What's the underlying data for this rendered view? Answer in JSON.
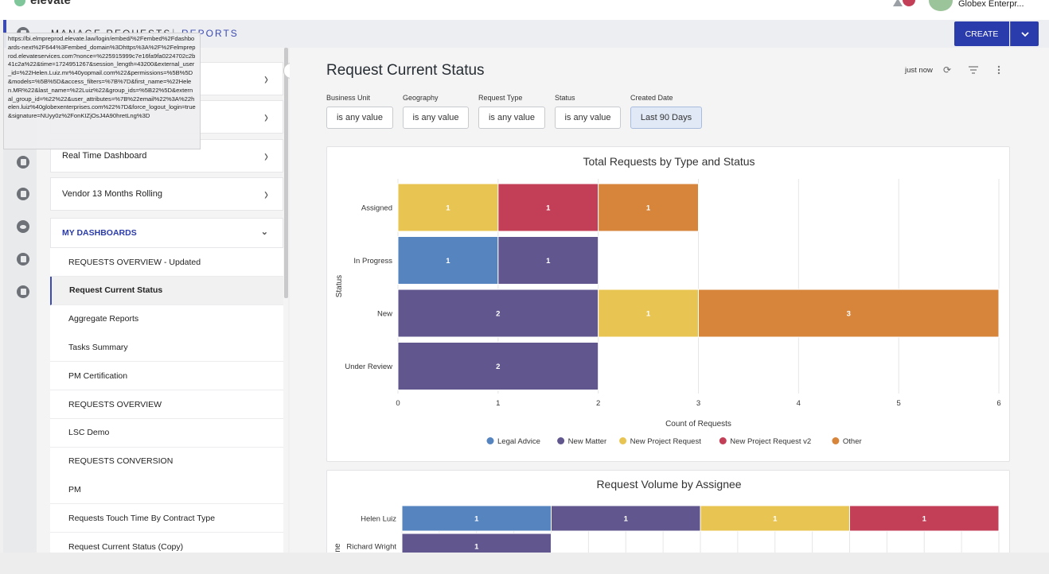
{
  "app": {
    "logo_text": "elevate",
    "user_name": "Globex Enterpr..."
  },
  "subnav": {
    "tabs": [
      {
        "label": "MANAGE REQUESTS"
      },
      {
        "label": "REPORTS"
      }
    ],
    "separator": "|"
  },
  "actions": {
    "create_label": "CREATE"
  },
  "tooltip_url": "https://bi.elmpreprod.elevate.law/login/embed/%2Fembed%2Fdashboards-next%2F644%3Fembed_domain%3Dhttps%3A%2F%2Felmpreprod.elevateservices.com?nonce=%225915999c7e16fa9fa0224702c2b41c2a%22&time=1724951267&session_length=43200&external_user_id=%22Helen.Luiz.mr%40yopmail.com%22&permissions=%5B%5D&models=%5B%5D&access_filters=%7B%7D&first_name=%22Helen.MR%22&last_name=%22Luiz%22&group_ids=%5B22%5D&external_group_id=%22%22&user_attributes=%7B%22email%22%3A%22helen.luiz%40globexenterprises.com%22%7D&force_logout_login=true&signature=NUyy0z%2FonKIZjOsJ4A90hretLng%3D",
  "sidebar": {
    "top_items": [
      {
        "label": ""
      },
      {
        "label": ""
      },
      {
        "label": "Real Time Dashboard"
      },
      {
        "label": "Vendor 13 Months Rolling"
      }
    ],
    "my_dashboards_label": "MY DASHBOARDS",
    "dashboards": [
      {
        "label": "REQUESTS OVERVIEW - Updated"
      },
      {
        "label": "Request Current Status"
      },
      {
        "label": "Aggregate Reports"
      },
      {
        "label": "Tasks Summary"
      },
      {
        "label": "PM Certification"
      },
      {
        "label": "REQUESTS OVERVIEW"
      },
      {
        "label": "LSC Demo"
      },
      {
        "label": "REQUESTS CONVERSION"
      },
      {
        "label": "PM"
      },
      {
        "label": "Requests Touch Time By Contract Type"
      },
      {
        "label": "Request Current Status (Copy)"
      }
    ]
  },
  "dashboard": {
    "title": "Request Current Status",
    "updated": "just now",
    "filters": [
      {
        "label": "Business Unit",
        "value": "is any value"
      },
      {
        "label": "Geography",
        "value": "is any value"
      },
      {
        "label": "Request Type",
        "value": "is any value"
      },
      {
        "label": "Status",
        "value": "is any value"
      },
      {
        "label": "Created Date",
        "value": "Last 90 Days"
      }
    ]
  },
  "colors": {
    "Legal Advice": "#5584bf",
    "New Matter": "#61578e",
    "New Project Request": "#e8c553",
    "New Project Request v2": "#c33f57",
    "Other": "#d6853b"
  },
  "chart_data": [
    {
      "type": "bar",
      "orientation": "horizontal",
      "stacked": true,
      "title": "Total Requests by Type and Status",
      "xlabel": "Count of Requests",
      "ylabel": "Status",
      "xlim": [
        0,
        6
      ],
      "xticks": [
        "0",
        "1",
        "2",
        "3",
        "4",
        "5",
        "6"
      ],
      "categories": [
        "Assigned",
        "In Progress",
        "New",
        "Under Review"
      ],
      "series": [
        {
          "name": "Legal Advice",
          "values": [
            0,
            1,
            0,
            0
          ]
        },
        {
          "name": "New Matter",
          "values": [
            0,
            1,
            2,
            2
          ]
        },
        {
          "name": "New Project Request",
          "values": [
            1,
            0,
            1,
            0
          ]
        },
        {
          "name": "New Project Request v2",
          "values": [
            1,
            0,
            0,
            0
          ]
        },
        {
          "name": "Other",
          "values": [
            1,
            0,
            3,
            0
          ]
        }
      ],
      "legend_position": "bottom"
    },
    {
      "type": "bar",
      "orientation": "horizontal",
      "stacked": true,
      "title": "Request Volume by Assignee",
      "ylabel": "Assignee",
      "ylabel_visible": "ne",
      "xlim": [
        0,
        4
      ],
      "categories": [
        "Helen Luiz",
        "Richard Wright"
      ],
      "series": [
        {
          "name": "Legal Advice",
          "values": [
            1,
            0
          ]
        },
        {
          "name": "New Matter",
          "values": [
            1,
            1
          ]
        },
        {
          "name": "New Project Request",
          "values": [
            1,
            0
          ]
        },
        {
          "name": "New Project Request v2",
          "values": [
            1,
            0
          ]
        }
      ]
    }
  ]
}
